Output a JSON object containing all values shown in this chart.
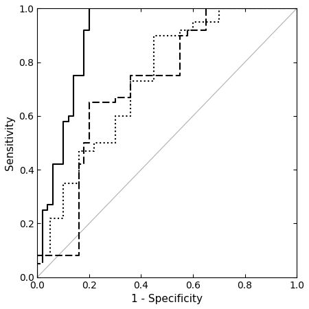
{
  "xlabel": "1 - Specificity",
  "ylabel": "Sensitivity",
  "xlim": [
    0,
    1
  ],
  "ylim": [
    0,
    1
  ],
  "xticks": [
    0.0,
    0.2,
    0.4,
    0.6,
    0.8,
    1.0
  ],
  "yticks": [
    0.0,
    0.2,
    0.4,
    0.6,
    0.8,
    1.0
  ],
  "reference_line_color": "#b0b0b0",
  "curve_color": "#000000",
  "background_color": "#ffffff",
  "nlr_x": [
    0.0,
    0.0,
    0.02,
    0.02,
    0.04,
    0.04,
    0.06,
    0.06,
    0.1,
    0.1,
    0.12,
    0.12,
    0.14,
    0.14,
    0.18,
    0.18,
    0.2,
    0.2,
    0.55,
    0.55,
    1.0
  ],
  "nlr_y": [
    0.0,
    0.08,
    0.08,
    0.25,
    0.25,
    0.27,
    0.27,
    0.42,
    0.42,
    0.58,
    0.58,
    0.6,
    0.6,
    0.75,
    0.75,
    0.92,
    0.92,
    1.0,
    1.0,
    1.0,
    1.0
  ],
  "palbi_x": [
    0.0,
    0.0,
    0.02,
    0.02,
    0.16,
    0.16,
    0.18,
    0.18,
    0.2,
    0.2,
    0.3,
    0.3,
    0.36,
    0.36,
    0.55,
    0.55,
    0.58,
    0.58,
    0.65,
    0.65,
    1.0
  ],
  "palbi_y": [
    0.0,
    0.05,
    0.05,
    0.08,
    0.08,
    0.42,
    0.42,
    0.5,
    0.5,
    0.65,
    0.65,
    0.67,
    0.67,
    0.75,
    0.75,
    0.9,
    0.9,
    0.92,
    0.92,
    1.0,
    1.0
  ],
  "apache_x": [
    0.0,
    0.0,
    0.05,
    0.05,
    0.1,
    0.1,
    0.16,
    0.16,
    0.22,
    0.22,
    0.3,
    0.3,
    0.36,
    0.36,
    0.45,
    0.45,
    0.55,
    0.55,
    0.6,
    0.6,
    0.7,
    0.7,
    1.0
  ],
  "apache_y": [
    0.0,
    0.08,
    0.08,
    0.22,
    0.22,
    0.35,
    0.35,
    0.47,
    0.47,
    0.5,
    0.5,
    0.6,
    0.6,
    0.73,
    0.73,
    0.9,
    0.9,
    0.92,
    0.92,
    0.95,
    0.95,
    1.0,
    1.0
  ],
  "linewidth": 1.5,
  "xlabel_fontsize": 11,
  "ylabel_fontsize": 11,
  "tick_fontsize": 10
}
